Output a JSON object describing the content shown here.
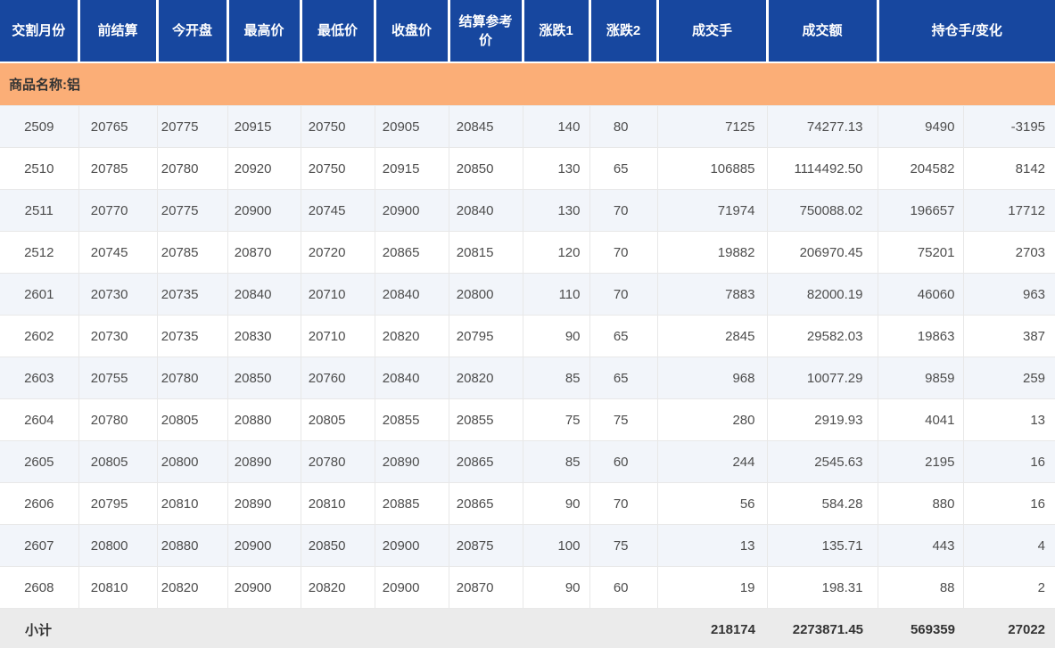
{
  "colors": {
    "header_bg": "#17479F",
    "header_text": "#FFFFFF",
    "product_band_bg": "#FBAE77",
    "row_alt_bg": "#F2F5FA",
    "row_bg": "#FFFFFF",
    "border": "#E8E8E8",
    "subtotal_bg": "#EBEBEB",
    "data_text": "#4D4D4D"
  },
  "table": {
    "header_labels": [
      "交割月份",
      "前结算",
      "今开盘",
      "最高价",
      "最低价",
      "收盘价",
      "结算参考价",
      "涨跌1",
      "涨跌2",
      "成交手",
      "成交额",
      "持仓手/变化"
    ],
    "product_label": "商品名称:铝",
    "rows": [
      [
        "2509",
        "20765",
        "20775",
        "20915",
        "20750",
        "20905",
        "20845",
        "140",
        "80",
        "7125",
        "74277.13",
        "9490",
        "-3195"
      ],
      [
        "2510",
        "20785",
        "20780",
        "20920",
        "20750",
        "20915",
        "20850",
        "130",
        "65",
        "106885",
        "1114492.50",
        "204582",
        "8142"
      ],
      [
        "2511",
        "20770",
        "20775",
        "20900",
        "20745",
        "20900",
        "20840",
        "130",
        "70",
        "71974",
        "750088.02",
        "196657",
        "17712"
      ],
      [
        "2512",
        "20745",
        "20785",
        "20870",
        "20720",
        "20865",
        "20815",
        "120",
        "70",
        "19882",
        "206970.45",
        "75201",
        "2703"
      ],
      [
        "2601",
        "20730",
        "20735",
        "20840",
        "20710",
        "20840",
        "20800",
        "110",
        "70",
        "7883",
        "82000.19",
        "46060",
        "963"
      ],
      [
        "2602",
        "20730",
        "20735",
        "20830",
        "20710",
        "20820",
        "20795",
        "90",
        "65",
        "2845",
        "29582.03",
        "19863",
        "387"
      ],
      [
        "2603",
        "20755",
        "20780",
        "20850",
        "20760",
        "20840",
        "20820",
        "85",
        "65",
        "968",
        "10077.29",
        "9859",
        "259"
      ],
      [
        "2604",
        "20780",
        "20805",
        "20880",
        "20805",
        "20855",
        "20855",
        "75",
        "75",
        "280",
        "2919.93",
        "4041",
        "13"
      ],
      [
        "2605",
        "20805",
        "20800",
        "20890",
        "20780",
        "20890",
        "20865",
        "85",
        "60",
        "244",
        "2545.63",
        "2195",
        "16"
      ],
      [
        "2606",
        "20795",
        "20810",
        "20890",
        "20810",
        "20885",
        "20865",
        "90",
        "70",
        "56",
        "584.28",
        "880",
        "16"
      ],
      [
        "2607",
        "20800",
        "20880",
        "20900",
        "20850",
        "20900",
        "20875",
        "100",
        "75",
        "13",
        "135.71",
        "443",
        "4"
      ],
      [
        "2608",
        "20810",
        "20820",
        "20900",
        "20820",
        "20900",
        "20870",
        "90",
        "60",
        "19",
        "198.31",
        "88",
        "2"
      ]
    ],
    "subtotal": {
      "label": "小计",
      "volume_total": "218174",
      "turnover_total": "2273871.45",
      "open_interest_total": "569359",
      "change_total": "27022"
    }
  }
}
